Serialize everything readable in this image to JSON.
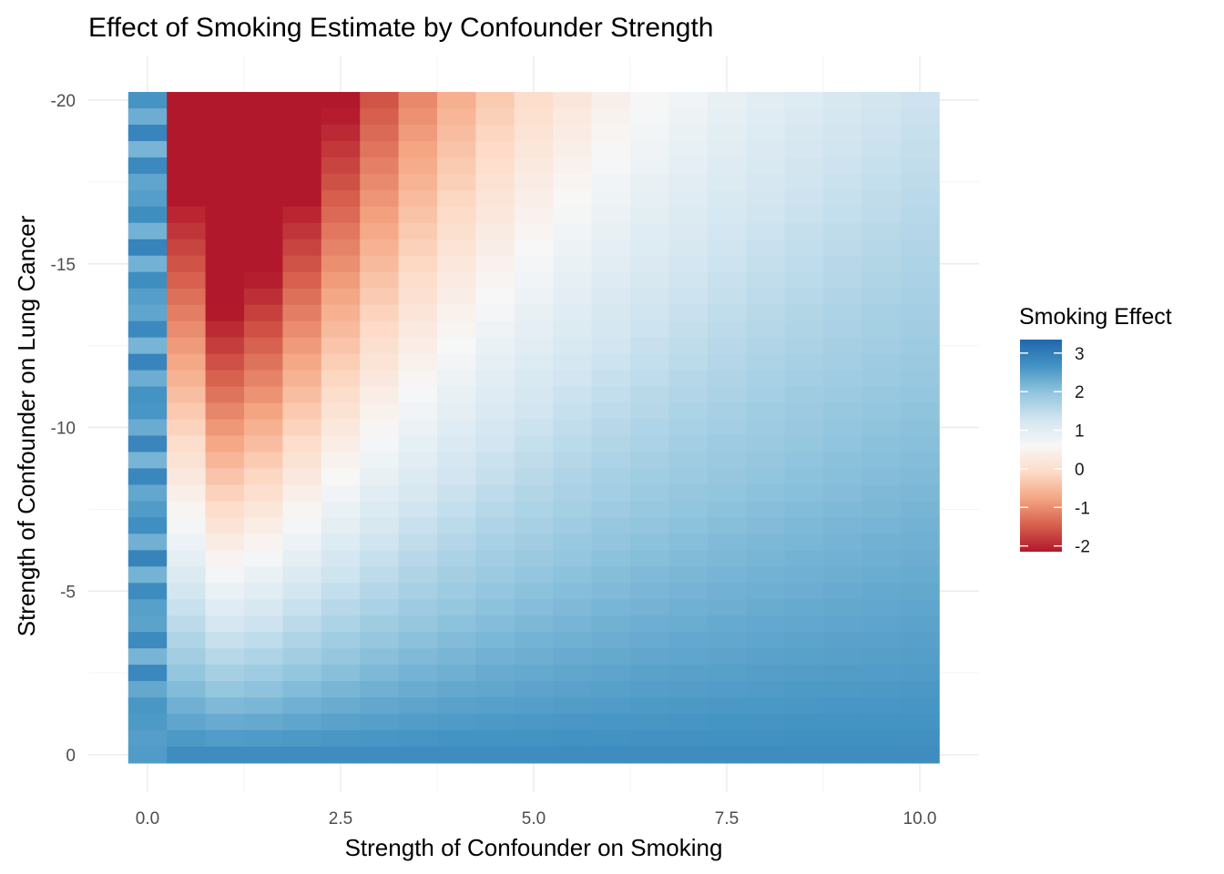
{
  "chart_data": {
    "type": "heatmap",
    "title": "Effect of Smoking Estimate by Confounder Strength",
    "xlabel": "Strength of Confounder on Smoking",
    "ylabel": "Strength of Confounder on Lung Cancer",
    "x": {
      "min": 0,
      "max": 10,
      "step": 0.5,
      "ticks": [
        0,
        2.5,
        5,
        7.5,
        10
      ],
      "tick_labels": [
        "0.0",
        "2.5",
        "5.0",
        "7.5",
        "10.0"
      ]
    },
    "y": {
      "min": -20,
      "max": 0,
      "step": 0.5,
      "ticks": [
        -20,
        -15,
        -10,
        -5,
        0
      ],
      "tick_labels": [
        "-20",
        "-15",
        "-10",
        "-5",
        "0"
      ],
      "reversed": true
    },
    "legend": {
      "title": "Smoking Effect",
      "placement": "right",
      "min": -2.15,
      "max": 3.35,
      "ticks": [
        3,
        2,
        1,
        0,
        -1,
        -2
      ],
      "tick_labels": [
        "3",
        "2",
        "1",
        "0",
        "-1",
        "-2"
      ],
      "colors": [
        "#b2182b",
        "#d6604d",
        "#f4a582",
        "#fddbc7",
        "#f7f7f7",
        "#d1e5f0",
        "#92c5de",
        "#4393c3",
        "#2166ac"
      ]
    },
    "grid": true,
    "value_model": "Estimated effect; roughly 2.7 at x=0 and along y=0, dipping to about -2 near x=2, y=-20, rising to about 1.5-2.5 at large x."
  }
}
